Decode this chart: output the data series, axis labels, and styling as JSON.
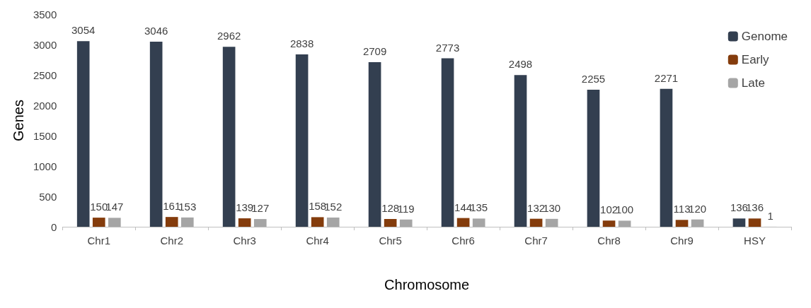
{
  "chart_data": {
    "type": "bar",
    "xlabel": "Chromosome",
    "ylabel": "Genes",
    "categories": [
      "Chr1",
      "Chr2",
      "Chr3",
      "Chr4",
      "Chr5",
      "Chr6",
      "Chr7",
      "Chr8",
      "Chr9",
      "HSY"
    ],
    "series": [
      {
        "name": "Genome",
        "color": "#333f50",
        "values": [
          3054,
          3046,
          2962,
          2838,
          2709,
          2773,
          2498,
          2255,
          2271,
          136
        ]
      },
      {
        "name": "Early",
        "color": "#843c0c",
        "values": [
          150,
          161,
          139,
          158,
          128,
          144,
          132,
          102,
          113,
          136
        ]
      },
      {
        "name": "Late",
        "color": "#a5a5a5",
        "values": [
          147,
          153,
          127,
          152,
          119,
          135,
          130,
          100,
          120,
          1
        ]
      }
    ],
    "ylim": [
      0,
      3500
    ],
    "yticks": [
      0,
      500,
      1000,
      1500,
      2000,
      2500,
      3000,
      3500
    ],
    "data_labels": true,
    "legend": "top right",
    "grid": false
  }
}
